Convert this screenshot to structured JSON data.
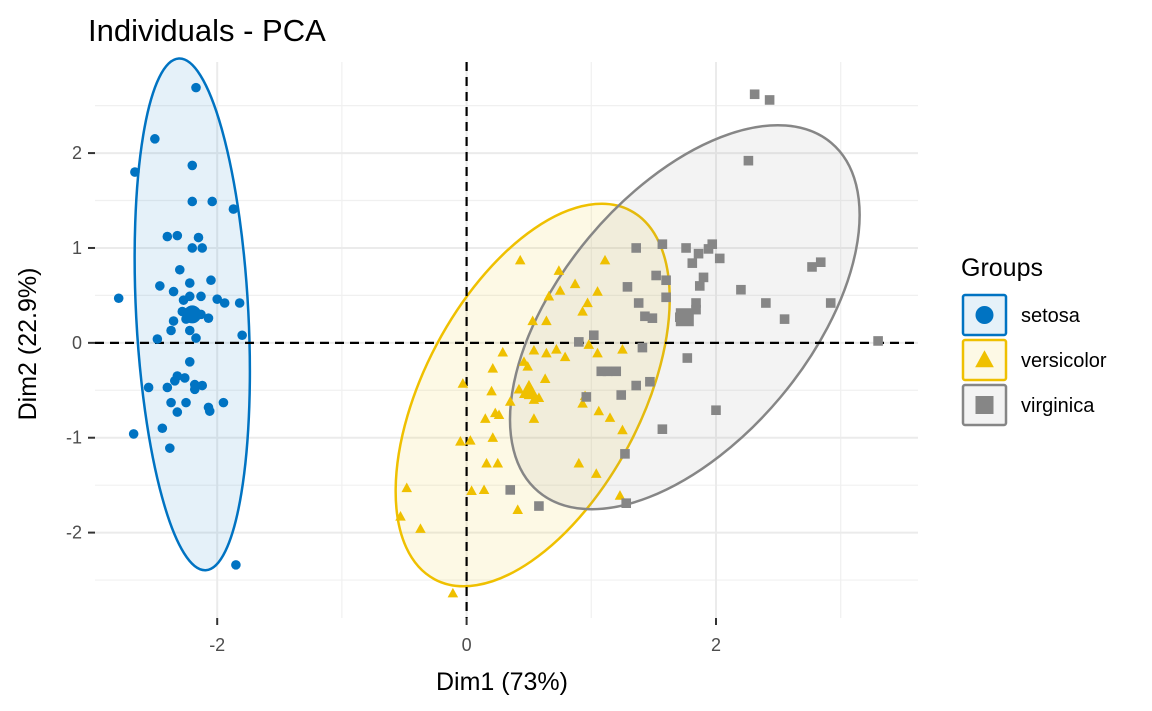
{
  "chart_data": {
    "type": "scatter",
    "title": "Individuals - PCA",
    "xlabel": "Dim1 (73%)",
    "ylabel": "Dim2 (22.9%)",
    "xlim": [
      -2.98,
      3.62
    ],
    "ylim": [
      -2.9,
      2.96
    ],
    "x_ticks": [
      -2,
      0,
      2
    ],
    "y_ticks": [
      -2,
      -1,
      0,
      1,
      2
    ],
    "grid": true,
    "reference_lines": {
      "x": 0,
      "y": 0,
      "style": "dashed"
    },
    "legend": {
      "title": "Groups",
      "position": "right"
    },
    "series": [
      {
        "name": "setosa",
        "color": "#0073C2",
        "marker": "circle",
        "centroid": [
          -2.2,
          0.3
        ],
        "ellipse": {
          "cx": -2.2,
          "cy": 0.3,
          "rx": 0.45,
          "ry": 2.7,
          "angle": -3
        },
        "points": [
          [
            -2.17,
            2.69
          ],
          [
            -2.5,
            2.15
          ],
          [
            -2.66,
            1.8
          ],
          [
            -2.2,
            1.87
          ],
          [
            -2.2,
            1.49
          ],
          [
            -2.04,
            1.49
          ],
          [
            -1.87,
            1.41
          ],
          [
            -2.32,
            1.13
          ],
          [
            -2.4,
            1.12
          ],
          [
            -2.15,
            1.11
          ],
          [
            -2.2,
            1.0
          ],
          [
            -2.12,
            1.0
          ],
          [
            -2.3,
            0.77
          ],
          [
            -2.46,
            0.6
          ],
          [
            -2.22,
            0.63
          ],
          [
            -2.05,
            0.66
          ],
          [
            -2.79,
            0.47
          ],
          [
            -2.35,
            0.54
          ],
          [
            -2.22,
            0.49
          ],
          [
            -2.27,
            0.45
          ],
          [
            -2.13,
            0.49
          ],
          [
            -2.0,
            0.46
          ],
          [
            -1.94,
            0.42
          ],
          [
            -1.82,
            0.42
          ],
          [
            -2.2,
            0.3
          ],
          [
            -2.28,
            0.33
          ],
          [
            -2.13,
            0.3
          ],
          [
            -2.35,
            0.23
          ],
          [
            -2.07,
            0.26
          ],
          [
            -2.25,
            0.25
          ],
          [
            -2.37,
            0.13
          ],
          [
            -2.22,
            0.13
          ],
          [
            -2.48,
            0.04
          ],
          [
            -1.8,
            0.08
          ],
          [
            -2.17,
            0.05
          ],
          [
            -2.22,
            -0.2
          ],
          [
            -2.32,
            -0.35
          ],
          [
            -2.26,
            -0.37
          ],
          [
            -2.34,
            -0.4
          ],
          [
            -2.55,
            -0.47
          ],
          [
            -2.4,
            -0.47
          ],
          [
            -2.18,
            -0.44
          ],
          [
            -2.12,
            -0.45
          ],
          [
            -2.18,
            -0.49
          ],
          [
            -2.37,
            -0.63
          ],
          [
            -2.25,
            -0.63
          ],
          [
            -1.95,
            -0.63
          ],
          [
            -2.07,
            -0.68
          ],
          [
            -2.32,
            -0.73
          ],
          [
            -2.06,
            -0.72
          ],
          [
            -2.67,
            -0.96
          ],
          [
            -2.44,
            -0.9
          ],
          [
            -2.38,
            -1.11
          ],
          [
            -1.85,
            -2.34
          ]
        ]
      },
      {
        "name": "versicolor",
        "color": "#EFC000",
        "marker": "triangle",
        "centroid": [
          0.5,
          -0.5
        ],
        "ellipse": {
          "cx": 0.53,
          "cy": -0.55,
          "rx": 0.87,
          "ry": 2.2,
          "angle": 28
        },
        "points": [
          [
            0.43,
            0.87
          ],
          [
            0.74,
            0.76
          ],
          [
            1.11,
            0.87
          ],
          [
            0.87,
            0.62
          ],
          [
            0.66,
            0.49
          ],
          [
            0.75,
            0.55
          ],
          [
            1.05,
            0.54
          ],
          [
            0.97,
            0.42
          ],
          [
            0.53,
            0.23
          ],
          [
            0.64,
            0.23
          ],
          [
            0.93,
            0.33
          ],
          [
            0.29,
            -0.1
          ],
          [
            0.46,
            -0.2
          ],
          [
            0.64,
            -0.11
          ],
          [
            0.72,
            -0.07
          ],
          [
            0.98,
            -0.02
          ],
          [
            1.05,
            -0.11
          ],
          [
            1.25,
            -0.07
          ],
          [
            0.79,
            -0.15
          ],
          [
            0.54,
            -0.08
          ],
          [
            0.49,
            -0.25
          ],
          [
            0.63,
            -0.38
          ],
          [
            0.21,
            -0.27
          ],
          [
            0.5,
            -0.45
          ],
          [
            0.5,
            -0.55
          ],
          [
            0.54,
            -0.6
          ],
          [
            0.58,
            -0.58
          ],
          [
            0.42,
            -0.49
          ],
          [
            0.35,
            -0.62
          ],
          [
            0.2,
            -0.51
          ],
          [
            0.23,
            -0.74
          ],
          [
            0.15,
            -0.8
          ],
          [
            0.26,
            -0.76
          ],
          [
            0.54,
            -0.8
          ],
          [
            0.95,
            -0.56
          ],
          [
            0.93,
            -0.64
          ],
          [
            1.06,
            -0.72
          ],
          [
            1.15,
            -0.79
          ],
          [
            1.25,
            -0.92
          ],
          [
            -0.03,
            -0.43
          ],
          [
            0.03,
            -1.03
          ],
          [
            -0.05,
            -1.04
          ],
          [
            0.21,
            -1.0
          ],
          [
            0.16,
            -1.27
          ],
          [
            0.25,
            -1.27
          ],
          [
            0.9,
            -1.27
          ],
          [
            1.04,
            -1.38
          ],
          [
            -0.48,
            -1.53
          ],
          [
            0.04,
            -1.56
          ],
          [
            0.14,
            -1.55
          ],
          [
            0.41,
            -1.76
          ],
          [
            1.23,
            -1.61
          ],
          [
            -0.53,
            -1.83
          ],
          [
            -0.37,
            -1.96
          ],
          [
            -0.11,
            -2.64
          ]
        ]
      },
      {
        "name": "virginica",
        "color": "#868686",
        "marker": "square",
        "centroid": [
          1.75,
          0.27
        ],
        "ellipse": {
          "cx": 1.75,
          "cy": 0.27,
          "rx": 1.0,
          "ry": 2.4,
          "angle": 40
        },
        "points": [
          [
            2.31,
            2.62
          ],
          [
            2.43,
            2.56
          ],
          [
            2.26,
            1.92
          ],
          [
            1.57,
            1.04
          ],
          [
            1.36,
            1.0
          ],
          [
            1.76,
            1.0
          ],
          [
            1.97,
            1.04
          ],
          [
            1.94,
            0.99
          ],
          [
            1.86,
            0.94
          ],
          [
            2.03,
            0.89
          ],
          [
            1.81,
            0.84
          ],
          [
            1.52,
            0.71
          ],
          [
            1.9,
            0.69
          ],
          [
            1.6,
            0.66
          ],
          [
            1.87,
            0.6
          ],
          [
            2.77,
            0.8
          ],
          [
            2.84,
            0.85
          ],
          [
            2.2,
            0.56
          ],
          [
            1.84,
            0.42
          ],
          [
            1.29,
            0.59
          ],
          [
            1.6,
            0.48
          ],
          [
            1.38,
            0.42
          ],
          [
            2.4,
            0.42
          ],
          [
            2.92,
            0.42
          ],
          [
            1.84,
            0.35
          ],
          [
            1.49,
            0.26
          ],
          [
            1.43,
            0.28
          ],
          [
            1.71,
            0.27
          ],
          [
            1.75,
            0.27
          ],
          [
            2.55,
            0.25
          ],
          [
            1.02,
            0.08
          ],
          [
            0.9,
            0.01
          ],
          [
            1.41,
            -0.05
          ],
          [
            1.77,
            -0.16
          ],
          [
            1.08,
            -0.3
          ],
          [
            1.13,
            -0.3
          ],
          [
            1.2,
            -0.3
          ],
          [
            1.47,
            -0.41
          ],
          [
            1.36,
            -0.45
          ],
          [
            1.24,
            -0.55
          ],
          [
            0.96,
            -0.57
          ],
          [
            2.0,
            -0.71
          ],
          [
            1.57,
            -0.91
          ],
          [
            1.27,
            -1.17
          ],
          [
            0.35,
            -1.55
          ],
          [
            0.58,
            -1.72
          ],
          [
            1.28,
            -1.69
          ],
          [
            3.3,
            0.02
          ]
        ]
      }
    ]
  }
}
